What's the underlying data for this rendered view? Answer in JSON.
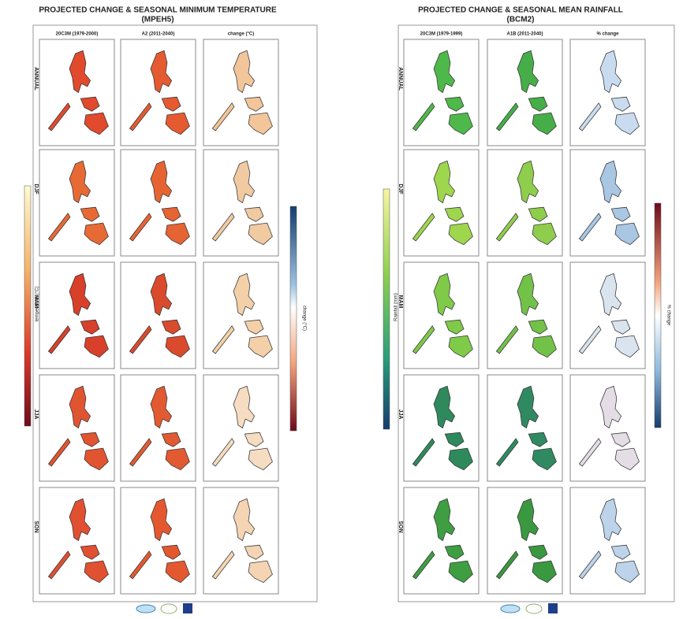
{
  "panels": [
    {
      "title": [
        "PROJECTED CHANGE & SEASONAL MINIMUM TEMPERATURE",
        "(MPEH5)"
      ],
      "columns": [
        "20C3M (1979-2000)",
        "A2 (2011-2040)",
        "change (°C)"
      ],
      "rows": [
        "ANNUAL",
        "DJF",
        "MAM",
        "JJA",
        "SON"
      ],
      "colorbar_left_label": "temperature (°C)",
      "colorbar_right_label": "change (°C)"
    },
    {
      "title": [
        "PROJECTED CHANGE & SEASONAL MEAN RAINFALL",
        "(BCM2)"
      ],
      "columns": [
        "20C3M (1979-1999)",
        "A1B (2011-2040)",
        "% change"
      ],
      "rows": [
        "ANNUAL",
        "DJF",
        "MAM",
        "JJA",
        "SON"
      ],
      "colorbar_left_label": "Rainfall (mm)",
      "colorbar_right_label": "% change"
    }
  ]
}
